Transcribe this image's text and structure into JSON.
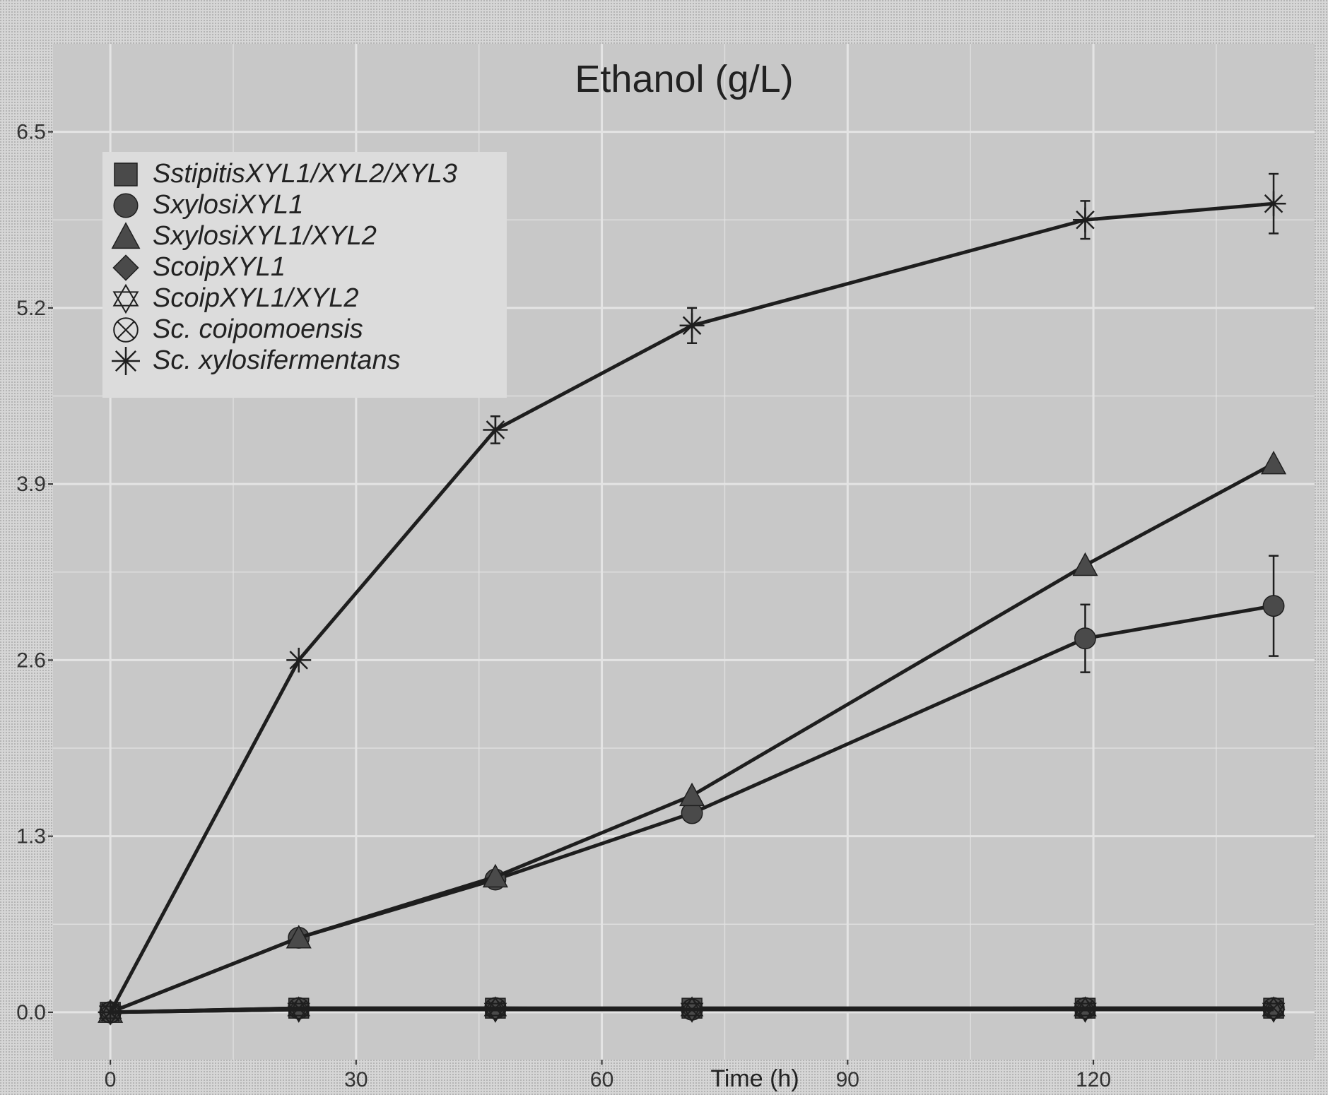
{
  "chart_data": {
    "type": "line",
    "title": "Ethanol (g/L)",
    "xlabel": "Time (h)",
    "ylabel": "",
    "xlim": [
      -7,
      147
    ],
    "ylim": [
      -0.35,
      7.15
    ],
    "x_ticks": [
      0,
      30,
      60,
      90,
      120
    ],
    "x_tick_labels": [
      "0",
      "30",
      "60",
      "90",
      "120"
    ],
    "y_ticks": [
      0.0,
      1.3,
      2.6,
      3.9,
      5.2,
      6.5
    ],
    "y_tick_labels": [
      "0.0",
      "1.3",
      "2.6",
      "3.9",
      "5.2",
      "6.5"
    ],
    "grid": true,
    "legend_position": "top-left",
    "colors": {
      "panel": "#c9c9c9",
      "grid": "#e4e4e4",
      "line": "#1e1e1e",
      "marker": "#4a4a4a"
    },
    "series": [
      {
        "name": "SstipitisXYL1/XYL2/XYL3",
        "marker": "square",
        "x": [
          0,
          23,
          47,
          71,
          119,
          142
        ],
        "y": [
          0,
          0.03,
          0.03,
          0.03,
          0.03,
          0.03
        ],
        "err": [
          0,
          0,
          0,
          0,
          0,
          0
        ]
      },
      {
        "name": "SxylosiXYL1",
        "marker": "circle",
        "x": [
          0,
          23,
          47,
          71,
          119,
          142
        ],
        "y": [
          0,
          0.55,
          0.98,
          1.47,
          2.76,
          3.0
        ],
        "err": [
          0,
          0,
          0,
          0,
          0.25,
          0.37
        ]
      },
      {
        "name": "SxylosiXYL1/XYL2",
        "marker": "triangle",
        "x": [
          0,
          23,
          47,
          71,
          119,
          142
        ],
        "y": [
          0,
          0.55,
          1.0,
          1.6,
          3.3,
          4.05
        ],
        "err": [
          0,
          0,
          0,
          0,
          0,
          0
        ]
      },
      {
        "name": "ScoipXYL1",
        "marker": "diamond",
        "x": [
          0,
          23,
          47,
          71,
          119,
          142
        ],
        "y": [
          0,
          0.02,
          0.02,
          0.02,
          0.02,
          0.02
        ],
        "err": [
          0,
          0,
          0,
          0,
          0,
          0
        ]
      },
      {
        "name": "ScoipXYL1/XYL2",
        "marker": "star6",
        "x": [
          0,
          23,
          47,
          71,
          119,
          142
        ],
        "y": [
          0,
          0.02,
          0.02,
          0.02,
          0.02,
          0.02
        ],
        "err": [
          0,
          0,
          0,
          0,
          0,
          0
        ]
      },
      {
        "name": "Sc. coipomoensis",
        "marker": "circle-x",
        "x": [
          0,
          23,
          47,
          71,
          119,
          142
        ],
        "y": [
          0,
          0.03,
          0.03,
          0.02,
          0.03,
          0.03
        ],
        "err": [
          0,
          0,
          0,
          0,
          0,
          0
        ]
      },
      {
        "name": "Sc. xylosifermentans",
        "marker": "asterisk",
        "x": [
          0,
          23,
          47,
          71,
          119,
          142
        ],
        "y": [
          0,
          2.6,
          4.3,
          5.07,
          5.85,
          5.97
        ],
        "err": [
          0,
          0,
          0.1,
          0.13,
          0.14,
          0.22
        ]
      }
    ]
  }
}
